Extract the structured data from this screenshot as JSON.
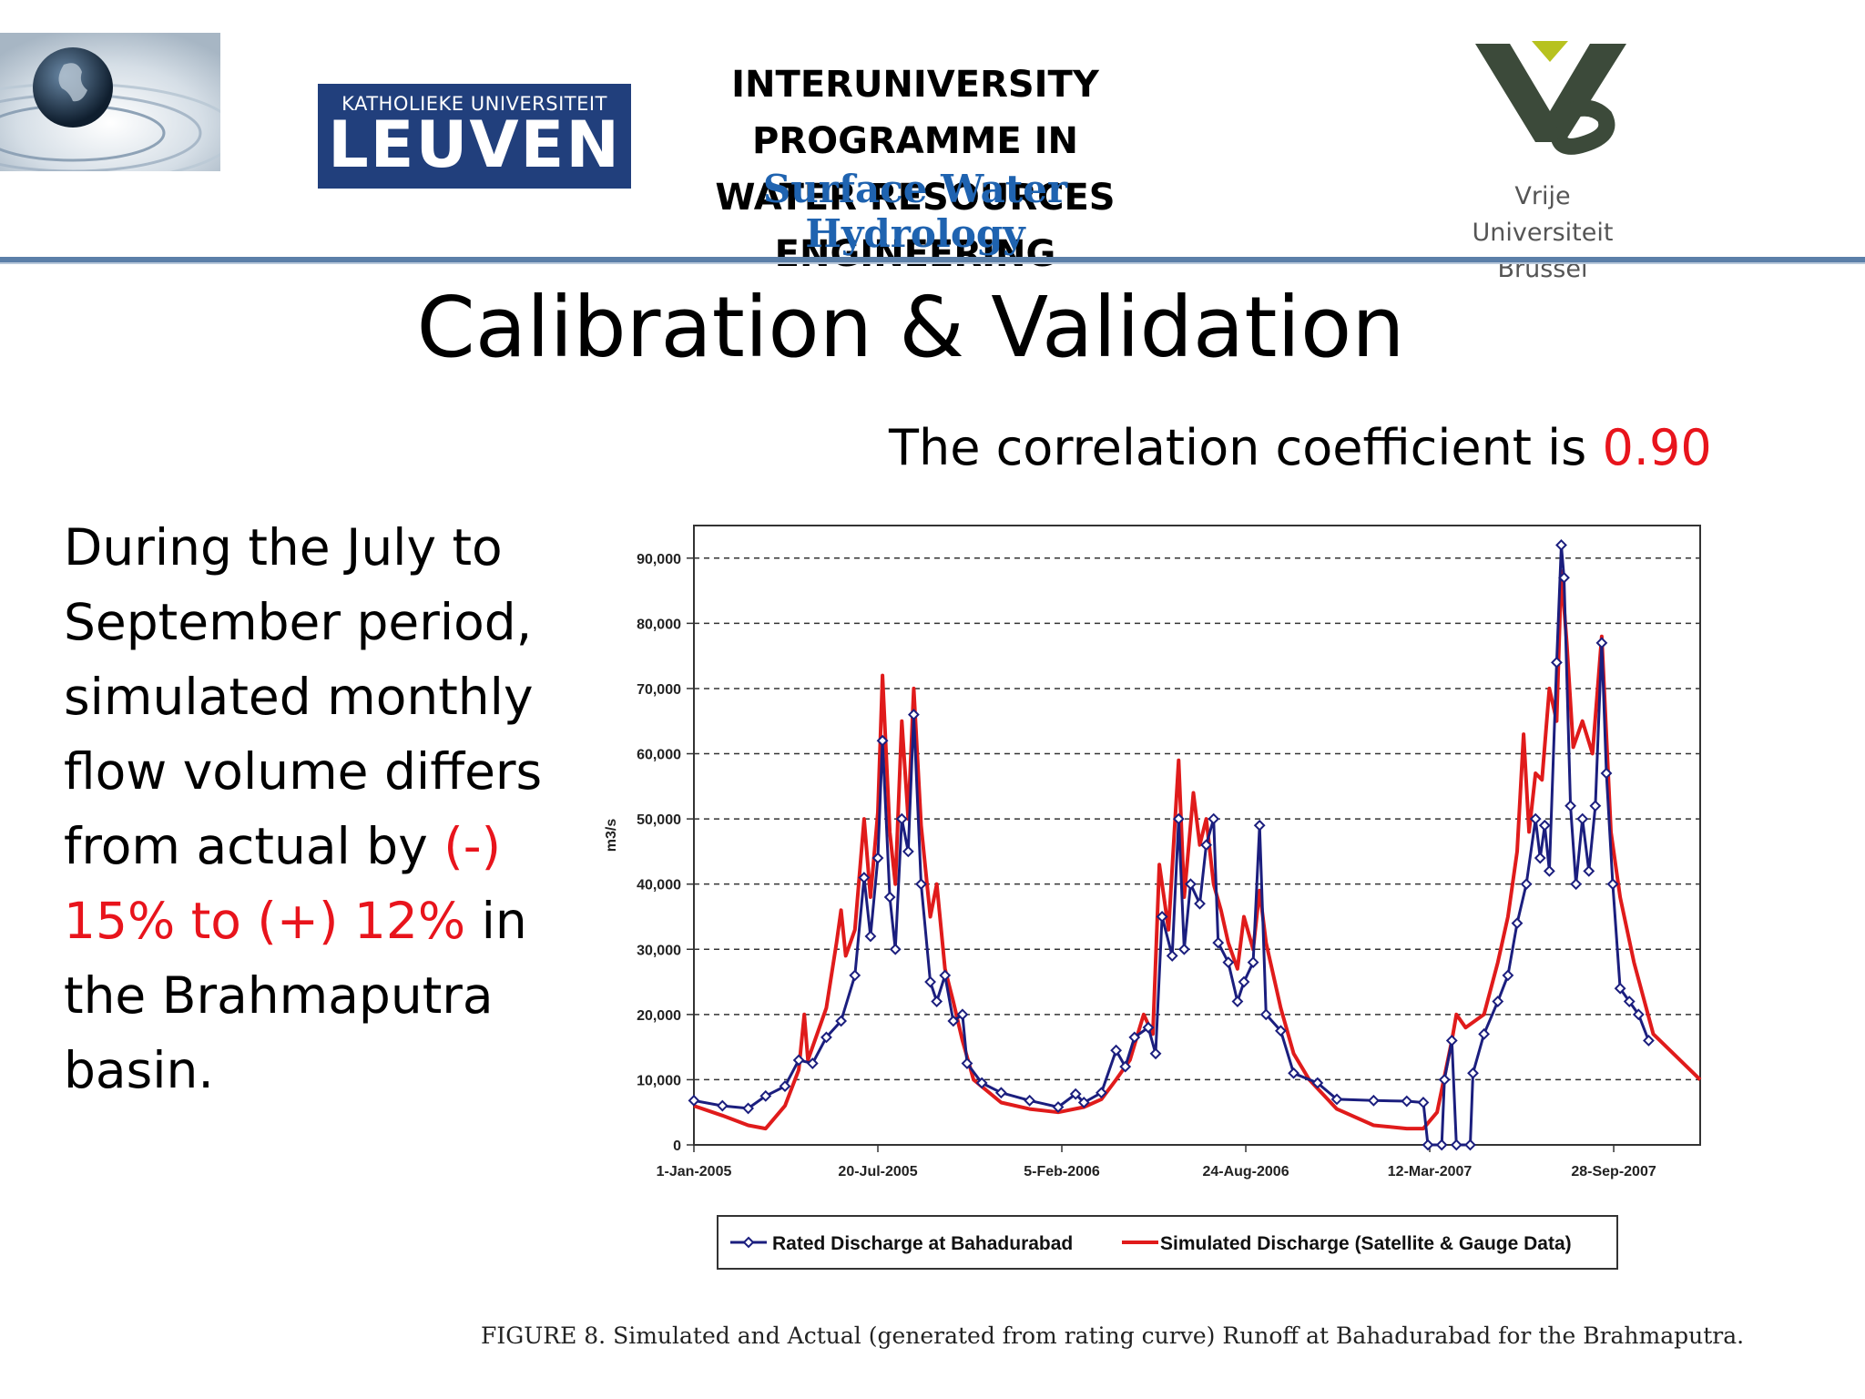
{
  "header": {
    "leuven_small": "KATHOLIEKE UNIVERSITEIT",
    "leuven_big": "LEUVEN",
    "programme_line1": "INTERUNIVERSITY PROGRAMME IN",
    "programme_line2": "WATER RESOURCES ENGINEERING",
    "subtitle": "Surface Water Hydrology",
    "vub_line1": "Vrije Universiteit",
    "vub_line2": "Brussel"
  },
  "slide": {
    "title": "Calibration & Validation",
    "correlation_prefix": "The correlation coefficient is ",
    "correlation_value": "0.90",
    "body_part1": "During the July to September period, simulated monthly flow volume differs from actual by ",
    "body_highlight": "(-) 15% to (+) 12%",
    "body_part2": " in the Brahmaputra basin.",
    "figure_caption": "FIGURE 8.  Simulated and Actual (generated from rating curve) Runoff at Bahadurabad for the Brahmaputra."
  },
  "colors": {
    "rated": "#1b1e7e",
    "simulated": "#e01b1b",
    "highlight": "#e8141c",
    "subtitle": "#1f63b0",
    "leuven_bg": "#213f7c"
  },
  "chart_data": {
    "type": "line",
    "title": "",
    "xlabel": "",
    "ylabel": "m3/s",
    "ylim": [
      0,
      95000
    ],
    "xlim": [
      "2005-01-01",
      "2007-12-31"
    ],
    "y_ticks": [
      0,
      10000,
      20000,
      30000,
      40000,
      50000,
      60000,
      70000,
      80000,
      90000
    ],
    "y_tick_labels": [
      "0",
      "10,000",
      "20,000",
      "30,000",
      "40,000",
      "50,000",
      "60,000",
      "70,000",
      "80,000",
      "90,000"
    ],
    "x_ticks": [
      "2005-01-01",
      "2005-07-20",
      "2006-02-05",
      "2006-08-24",
      "2007-03-12",
      "2007-09-28"
    ],
    "x_tick_labels": [
      "1-Jan-2005",
      "20-Jul-2005",
      "5-Feb-2006",
      "24-Aug-2006",
      "12-Mar-2007",
      "28-Sep-2007"
    ],
    "grid": "horizontal dashed",
    "legend": "bottom",
    "series": [
      {
        "name": "Rated Discharge at Bahadurabad",
        "color": "#1b1e7e",
        "marker": "diamond",
        "points": [
          [
            "2005-01-01",
            6800
          ],
          [
            "2005-02-01",
            6000
          ],
          [
            "2005-03-01",
            5600
          ],
          [
            "2005-03-20",
            7500
          ],
          [
            "2005-04-10",
            9000
          ],
          [
            "2005-04-25",
            13000
          ],
          [
            "2005-05-10",
            12500
          ],
          [
            "2005-05-25",
            16500
          ],
          [
            "2005-06-10",
            19000
          ],
          [
            "2005-06-25",
            26000
          ],
          [
            "2005-07-05",
            41000
          ],
          [
            "2005-07-12",
            32000
          ],
          [
            "2005-07-20",
            44000
          ],
          [
            "2005-07-25",
            62000
          ],
          [
            "2005-08-02",
            38000
          ],
          [
            "2005-08-08",
            30000
          ],
          [
            "2005-08-15",
            50000
          ],
          [
            "2005-08-22",
            45000
          ],
          [
            "2005-08-28",
            66000
          ],
          [
            "2005-09-05",
            40000
          ],
          [
            "2005-09-15",
            25000
          ],
          [
            "2005-09-22",
            22000
          ],
          [
            "2005-10-01",
            26000
          ],
          [
            "2005-10-10",
            19000
          ],
          [
            "2005-10-20",
            20000
          ],
          [
            "2005-10-25",
            12500
          ],
          [
            "2005-11-10",
            9500
          ],
          [
            "2005-12-01",
            8000
          ],
          [
            "2006-01-01",
            6800
          ],
          [
            "2006-02-01",
            5800
          ],
          [
            "2006-02-20",
            7800
          ],
          [
            "2006-03-01",
            6500
          ],
          [
            "2006-03-20",
            8000
          ],
          [
            "2006-04-05",
            14500
          ],
          [
            "2006-04-15",
            12000
          ],
          [
            "2006-04-25",
            16500
          ],
          [
            "2006-05-10",
            18000
          ],
          [
            "2006-05-18",
            14000
          ],
          [
            "2006-05-25",
            35000
          ],
          [
            "2006-06-05",
            29000
          ],
          [
            "2006-06-12",
            50000
          ],
          [
            "2006-06-18",
            30000
          ],
          [
            "2006-06-25",
            40000
          ],
          [
            "2006-07-05",
            37000
          ],
          [
            "2006-07-12",
            46000
          ],
          [
            "2006-07-20",
            50000
          ],
          [
            "2006-07-25",
            31000
          ],
          [
            "2006-08-05",
            28000
          ],
          [
            "2006-08-15",
            22000
          ],
          [
            "2006-08-22",
            25000
          ],
          [
            "2006-09-01",
            28000
          ],
          [
            "2006-09-08",
            49000
          ],
          [
            "2006-09-15",
            20000
          ],
          [
            "2006-10-01",
            17500
          ],
          [
            "2006-10-15",
            11000
          ],
          [
            "2006-11-10",
            9500
          ],
          [
            "2006-12-01",
            7000
          ],
          [
            "2007-01-10",
            6800
          ],
          [
            "2007-02-15",
            6700
          ],
          [
            "2007-03-05",
            6500
          ],
          [
            "2007-03-10",
            0
          ],
          [
            "2007-03-25",
            0
          ],
          [
            "2007-03-28",
            10000
          ],
          [
            "2007-04-05",
            16000
          ],
          [
            "2007-04-10",
            0
          ],
          [
            "2007-04-25",
            0
          ],
          [
            "2007-04-28",
            11000
          ],
          [
            "2007-05-10",
            17000
          ],
          [
            "2007-05-25",
            22000
          ],
          [
            "2007-06-05",
            26000
          ],
          [
            "2007-06-15",
            34000
          ],
          [
            "2007-06-25",
            40000
          ],
          [
            "2007-07-05",
            50000
          ],
          [
            "2007-07-10",
            44000
          ],
          [
            "2007-07-15",
            49000
          ],
          [
            "2007-07-20",
            42000
          ],
          [
            "2007-07-28",
            74000
          ],
          [
            "2007-08-02",
            92000
          ],
          [
            "2007-08-05",
            87000
          ],
          [
            "2007-08-12",
            52000
          ],
          [
            "2007-08-18",
            40000
          ],
          [
            "2007-08-25",
            50000
          ],
          [
            "2007-09-01",
            42000
          ],
          [
            "2007-09-08",
            52000
          ],
          [
            "2007-09-15",
            77000
          ],
          [
            "2007-09-20",
            57000
          ],
          [
            "2007-09-27",
            40000
          ],
          [
            "2007-10-05",
            24000
          ],
          [
            "2007-10-15",
            22000
          ],
          [
            "2007-10-25",
            20000
          ],
          [
            "2007-11-05",
            16000
          ]
        ]
      },
      {
        "name": "Simulated Discharge (Satellite & Gauge Data)",
        "color": "#e01b1b",
        "points": [
          [
            "2005-01-01",
            6000
          ],
          [
            "2005-02-01",
            4500
          ],
          [
            "2005-03-01",
            3000
          ],
          [
            "2005-03-20",
            2500
          ],
          [
            "2005-04-10",
            6000
          ],
          [
            "2005-04-25",
            11500
          ],
          [
            "2005-05-01",
            20000
          ],
          [
            "2005-05-05",
            13000
          ],
          [
            "2005-05-25",
            21000
          ],
          [
            "2005-06-05",
            31000
          ],
          [
            "2005-06-10",
            36000
          ],
          [
            "2005-06-15",
            29000
          ],
          [
            "2005-06-25",
            33000
          ],
          [
            "2005-07-05",
            50000
          ],
          [
            "2005-07-12",
            38000
          ],
          [
            "2005-07-20",
            51000
          ],
          [
            "2005-07-25",
            72000
          ],
          [
            "2005-08-02",
            48000
          ],
          [
            "2005-08-08",
            40000
          ],
          [
            "2005-08-15",
            65000
          ],
          [
            "2005-08-22",
            50000
          ],
          [
            "2005-08-28",
            70000
          ],
          [
            "2005-09-05",
            49000
          ],
          [
            "2005-09-15",
            35000
          ],
          [
            "2005-09-22",
            40000
          ],
          [
            "2005-10-01",
            27000
          ],
          [
            "2005-10-10",
            22000
          ],
          [
            "2005-10-20",
            16000
          ],
          [
            "2005-11-01",
            10000
          ],
          [
            "2005-12-01",
            6500
          ],
          [
            "2006-01-01",
            5500
          ],
          [
            "2006-02-01",
            5000
          ],
          [
            "2006-03-01",
            5800
          ],
          [
            "2006-03-20",
            7000
          ],
          [
            "2006-04-05",
            10000
          ],
          [
            "2006-04-20",
            13000
          ],
          [
            "2006-05-05",
            20000
          ],
          [
            "2006-05-15",
            17000
          ],
          [
            "2006-05-22",
            43000
          ],
          [
            "2006-06-01",
            33000
          ],
          [
            "2006-06-12",
            59000
          ],
          [
            "2006-06-18",
            38000
          ],
          [
            "2006-06-28",
            54000
          ],
          [
            "2006-07-05",
            46000
          ],
          [
            "2006-07-12",
            50000
          ],
          [
            "2006-07-20",
            40000
          ],
          [
            "2006-07-28",
            36000
          ],
          [
            "2006-08-05",
            31000
          ],
          [
            "2006-08-15",
            27000
          ],
          [
            "2006-08-22",
            35000
          ],
          [
            "2006-09-01",
            30000
          ],
          [
            "2006-09-08",
            39000
          ],
          [
            "2006-09-15",
            31000
          ],
          [
            "2006-10-01",
            21000
          ],
          [
            "2006-10-15",
            14000
          ],
          [
            "2006-11-01",
            10000
          ],
          [
            "2006-12-01",
            5500
          ],
          [
            "2007-01-10",
            3000
          ],
          [
            "2007-02-15",
            2500
          ],
          [
            "2007-03-05",
            2500
          ],
          [
            "2007-03-20",
            5000
          ],
          [
            "2007-04-05",
            16000
          ],
          [
            "2007-04-10",
            20000
          ],
          [
            "2007-04-20",
            18000
          ],
          [
            "2007-05-10",
            20000
          ],
          [
            "2007-05-25",
            28000
          ],
          [
            "2007-06-05",
            35000
          ],
          [
            "2007-06-15",
            45000
          ],
          [
            "2007-06-22",
            63000
          ],
          [
            "2007-06-28",
            48000
          ],
          [
            "2007-07-05",
            57000
          ],
          [
            "2007-07-12",
            56000
          ],
          [
            "2007-07-20",
            70000
          ],
          [
            "2007-07-28",
            65000
          ],
          [
            "2007-08-02",
            88000
          ],
          [
            "2007-08-08",
            77000
          ],
          [
            "2007-08-15",
            61000
          ],
          [
            "2007-08-25",
            65000
          ],
          [
            "2007-09-05",
            60000
          ],
          [
            "2007-09-15",
            78000
          ],
          [
            "2007-09-25",
            48000
          ],
          [
            "2007-10-05",
            38000
          ],
          [
            "2007-10-20",
            28000
          ],
          [
            "2007-11-10",
            17000
          ],
          [
            "2007-12-31",
            10000
          ]
        ]
      }
    ]
  }
}
